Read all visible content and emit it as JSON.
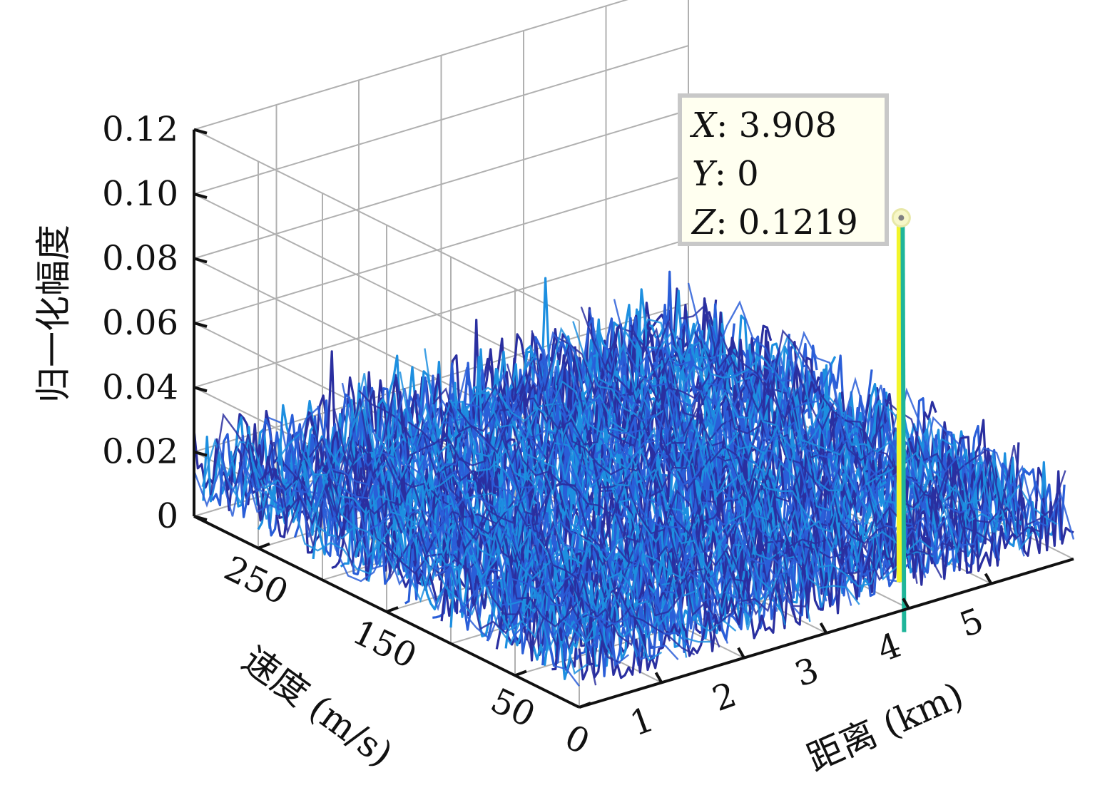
{
  "chart_data": {
    "type": "surface-waterfall",
    "title": "",
    "xlabel": "距离 (km)",
    "ylabel": "速度 (m/s)",
    "zlabel": "归一化幅度",
    "xlim": [
      0,
      6
    ],
    "ylim": [
      0,
      300
    ],
    "zlim": [
      0,
      0.12
    ],
    "x_ticks": [
      "1",
      "2",
      "3",
      "4",
      "5"
    ],
    "y_ticks": [
      "250",
      "150",
      "50",
      "0"
    ],
    "z_ticks": [
      "0",
      "0.02",
      "0.04",
      "0.06",
      "0.08",
      "0.10",
      "0.12"
    ],
    "grid": true,
    "noise_floor_typical": 0.02,
    "noise_floor_max": 0.07,
    "peak": {
      "x": 3.908,
      "y": 0,
      "z": 0.1219
    },
    "datatip": {
      "x_label": "X",
      "x_value": "3.908",
      "y_label": "Y",
      "y_value": "0",
      "z_label": "Z",
      "z_value": "0.1219"
    },
    "colors": {
      "noise_dark": "#2a2fa0",
      "noise_mid": "#2a5ed8",
      "noise_light": "#1d8fe0",
      "peak_line": "#1fb59a",
      "peak_highlight": "#f2f52a",
      "tip_bg": "#fffff0",
      "tip_border": "#c8c8c8",
      "grid": "#b0b0b0"
    }
  }
}
